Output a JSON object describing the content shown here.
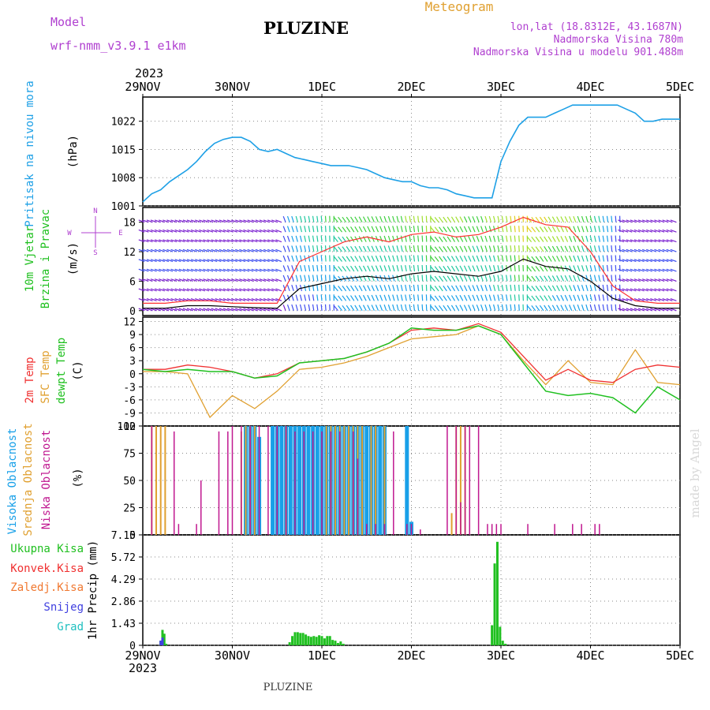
{
  "header": {
    "title": "PLUZINE",
    "model_label": "Model",
    "model_name": "wrf-nmm_v3.9.1 e1km",
    "meteogram_label": "Meteogram",
    "lonlat": "lon,lat (18.8312E, 43.1687N)",
    "elevation": "Nadmorska Visina 780m",
    "model_elevation": "Nadmorska Visina u modelu 901.488m",
    "watermark": "made by Angel",
    "footer": "PLUZINE"
  },
  "time_axis": {
    "year_top": "2023",
    "year_bottom": "2023",
    "labels": [
      "29NOV",
      "30NOV",
      "1DEC",
      "2DEC",
      "3DEC",
      "4DEC",
      "5DEC"
    ]
  },
  "colors": {
    "pressure": "#1ea0e6",
    "wind_speed": "#000000",
    "gust": "#ff3030",
    "t2m": "#f03030",
    "sfc": "#e0a030",
    "dew": "#20c020",
    "high_cloud": "#18a0e8",
    "mid_cloud": "#e0a030",
    "low_cloud": "#c01890",
    "total_precip": "#20c020",
    "conv_precip": "#f03030",
    "frz_precip": "#f07830",
    "snow": "#4040e0",
    "hail": "#20c0c0",
    "title_purple": "#b040d0",
    "orange_label": "#e0a030"
  },
  "chart_data": [
    {
      "type": "line",
      "ylabel_1": "Pritisak na nivou mora",
      "ylabel_2": "(hPa)",
      "yticks": [
        "1001",
        "1008",
        "1015",
        "1022"
      ],
      "ylim": [
        1001,
        1028
      ],
      "x_days": [
        0,
        0.1,
        0.2,
        0.3,
        0.4,
        0.5,
        0.6,
        0.7,
        0.8,
        0.9,
        1.0,
        1.1,
        1.2,
        1.3,
        1.4,
        1.5,
        1.6,
        1.7,
        1.8,
        1.9,
        2.0,
        2.1,
        2.2,
        2.3,
        2.4,
        2.5,
        2.6,
        2.7,
        2.8,
        2.9,
        3.0,
        3.1,
        3.2,
        3.3,
        3.4,
        3.5,
        3.6,
        3.7,
        3.8,
        3.9,
        4.0,
        4.1,
        4.2,
        4.3,
        4.4,
        4.5,
        4.6,
        4.7,
        4.8,
        4.9,
        5.0,
        5.1,
        5.2,
        5.3,
        5.4,
        5.5,
        5.6,
        5.7,
        5.8,
        5.9,
        6.0
      ],
      "series": [
        {
          "name": "",
          "values": [
            1002,
            1004,
            1005,
            1007,
            1008.5,
            1010,
            1012,
            1014.5,
            1016.5,
            1017.5,
            1018,
            1018,
            1017,
            1015,
            1014.5,
            1015,
            1014,
            1013,
            1012.5,
            1012,
            1011.5,
            1011,
            1011,
            1011,
            1010.5,
            1010,
            1009,
            1008,
            1007.5,
            1007,
            1007,
            1006,
            1005.5,
            1005.5,
            1005,
            1004,
            1003.5,
            1003,
            1003,
            1003,
            1012,
            1017,
            1021,
            1023,
            1023,
            1023,
            1024,
            1025,
            1026,
            1026,
            1026,
            1026,
            1026,
            1026,
            1025,
            1024,
            1022,
            1022,
            1022.5,
            1022.5,
            1022.5
          ]
        }
      ]
    },
    {
      "type": "line",
      "ylabel_1": "10m Vjetar",
      "ylabel_2": "Brzina i Pravac",
      "ylabel_3": "(m/s)",
      "compass": [
        "N",
        "E",
        "S",
        "W"
      ],
      "yticks": [
        "0",
        "6",
        "12",
        "18"
      ],
      "ylim": [
        -1,
        21
      ],
      "x_days": [
        0,
        0.25,
        0.5,
        0.75,
        1.0,
        1.25,
        1.5,
        1.75,
        2.0,
        2.25,
        2.5,
        2.75,
        3.0,
        3.25,
        3.5,
        3.75,
        4.0,
        4.25,
        4.5,
        4.75,
        5.0,
        5.25,
        5.5,
        5.75,
        6.0
      ],
      "series": [
        {
          "name": "",
          "values": [
            0.5,
            0.5,
            1.0,
            1.0,
            0.8,
            0.6,
            0.5,
            4.5,
            5.5,
            6.5,
            7.0,
            6.5,
            7.5,
            8.0,
            7.5,
            7.0,
            8.0,
            10.5,
            9.0,
            8.5,
            6.0,
            2.5,
            1.0,
            0.5,
            0.5
          ]
        },
        {
          "name": "",
          "values": [
            1.5,
            1.5,
            2.0,
            2.0,
            1.5,
            1.5,
            1.5,
            10.0,
            12.0,
            14.0,
            15.0,
            14.0,
            15.5,
            16.0,
            15.0,
            15.5,
            17.0,
            19.0,
            17.5,
            17.0,
            12.0,
            5.0,
            2.0,
            1.5,
            1.5
          ]
        }
      ]
    },
    {
      "type": "line",
      "ylabel_1": "2m Temp",
      "ylabel_2": "SFC Temp",
      "ylabel_3": "dewpt Temp",
      "ylabel_4": "(C)",
      "yticks": [
        "-12",
        "-9",
        "-6",
        "-3",
        "0",
        "3",
        "6",
        "9",
        "12"
      ],
      "ylim": [
        -12,
        13
      ],
      "x_days": [
        0,
        0.25,
        0.5,
        0.75,
        1.0,
        1.25,
        1.5,
        1.75,
        2.0,
        2.25,
        2.5,
        2.75,
        3.0,
        3.25,
        3.5,
        3.75,
        4.0,
        4.25,
        4.5,
        4.75,
        5.0,
        5.25,
        5.5,
        5.75,
        6.0
      ],
      "series": [
        {
          "name": "",
          "values": [
            1.0,
            1.0,
            2.0,
            1.5,
            0.5,
            -1.0,
            0.0,
            2.5,
            3.0,
            3.5,
            5.0,
            7.0,
            10.0,
            10.5,
            10.0,
            11.5,
            9.5,
            4.0,
            -1.5,
            1.0,
            -1.5,
            -2.0,
            1.0,
            2.0,
            1.5
          ]
        },
        {
          "name": "",
          "values": [
            0.5,
            0.5,
            0.0,
            -10.0,
            -5.0,
            -8.0,
            -4.0,
            1.0,
            1.5,
            2.5,
            4.0,
            6.0,
            8.0,
            8.5,
            9.0,
            11.0,
            9.0,
            3.0,
            -2.5,
            3.0,
            -2.0,
            -2.5,
            5.5,
            -2.0,
            -2.5
          ]
        },
        {
          "name": "",
          "values": [
            1.0,
            0.5,
            1.0,
            0.5,
            0.5,
            -1.0,
            -0.5,
            2.5,
            3.0,
            3.5,
            5.0,
            7.0,
            10.5,
            10.0,
            10.0,
            11.0,
            9.0,
            2.5,
            -4.0,
            -5.0,
            -4.5,
            -5.5,
            -9.0,
            -3.0,
            -6.0
          ]
        }
      ]
    },
    {
      "type": "bar",
      "ylabel_1": "Visoka Oblacnost",
      "ylabel_2": "Srednja Oblacnost",
      "ylabel_3": "Niska Oblacnost",
      "ylabel_4": "(%)",
      "yticks": [
        "0",
        "25",
        "50",
        "75",
        "100"
      ],
      "ylim": [
        0,
        100
      ],
      "series": [
        {
          "name": "",
          "x_days": [
            1.15,
            1.2,
            1.25,
            1.3,
            1.45,
            1.5,
            1.55,
            1.6,
            1.65,
            1.7,
            1.75,
            1.8,
            1.85,
            1.9,
            1.95,
            2.0,
            2.05,
            2.1,
            2.15,
            2.2,
            2.25,
            2.3,
            2.35,
            2.4,
            2.45,
            2.5,
            2.55,
            2.6,
            2.65,
            2.7,
            2.95,
            3.0
          ],
          "values": [
            100,
            100,
            100,
            90,
            100,
            100,
            100,
            100,
            100,
            100,
            100,
            100,
            100,
            100,
            100,
            100,
            100,
            100,
            100,
            100,
            100,
            100,
            100,
            100,
            100,
            100,
            100,
            100,
            100,
            100,
            100,
            12
          ]
        },
        {
          "name": "",
          "x_days": [
            0.1,
            0.15,
            0.2,
            0.25,
            1.1,
            1.15,
            1.2,
            1.25,
            1.6,
            2.05,
            2.1,
            2.15,
            2.2,
            2.25,
            2.3,
            2.35,
            2.4,
            2.45,
            2.55,
            2.6,
            2.7,
            3.45,
            3.5,
            3.55,
            3.6
          ],
          "values": [
            100,
            100,
            100,
            100,
            95,
            100,
            100,
            100,
            100,
            100,
            100,
            100,
            100,
            100,
            100,
            100,
            100,
            100,
            100,
            100,
            100,
            20,
            100,
            100,
            100
          ]
        },
        {
          "name": "",
          "x_days": [
            0.1,
            0.35,
            0.4,
            0.6,
            0.65,
            0.85,
            0.95,
            1.0,
            1.1,
            1.2,
            1.3,
            1.4,
            1.5,
            1.6,
            1.7,
            1.8,
            1.9,
            2.0,
            2.1,
            2.2,
            2.35,
            2.4,
            2.5,
            2.6,
            2.7,
            2.8,
            2.95,
            3.0,
            3.1,
            3.4,
            3.5,
            3.55,
            3.6,
            3.65,
            3.75,
            3.85,
            3.9,
            3.95,
            4.0,
            4.3,
            4.6,
            4.8,
            4.9,
            5.05,
            5.1
          ],
          "values": [
            100,
            95,
            10,
            10,
            50,
            95,
            95,
            100,
            100,
            100,
            100,
            100,
            100,
            100,
            95,
            95,
            95,
            95,
            95,
            95,
            95,
            70,
            10,
            10,
            10,
            95,
            10,
            10,
            5,
            100,
            100,
            30,
            100,
            100,
            100,
            10,
            10,
            10,
            10,
            10,
            10,
            10,
            10,
            10,
            10
          ]
        }
      ]
    },
    {
      "type": "bar",
      "ylabel_1": "1hr Precip",
      "ylabel_2": "(mm)",
      "legend": [
        "Ukupna Kisa",
        "Konvek.Kisa",
        "Zaledj.Kisa",
        "Snijeg",
        "Grad"
      ],
      "yticks": [
        "0",
        "1.43",
        "2.86",
        "4.29",
        "5.72",
        "7.15"
      ],
      "ylim": [
        0,
        7.15
      ],
      "series": [
        {
          "name": "Ukupna Kisa",
          "x_days": [
            0.2,
            0.22,
            0.24,
            0.26,
            1.64,
            1.67,
            1.7,
            1.73,
            1.76,
            1.79,
            1.82,
            1.85,
            1.88,
            1.91,
            1.94,
            1.97,
            2.0,
            2.03,
            2.06,
            2.09,
            2.12,
            2.15,
            2.18,
            2.21,
            2.24,
            3.9,
            3.93,
            3.96,
            3.99,
            4.02,
            4.05
          ],
          "values": [
            0.3,
            1.0,
            0.75,
            0.1,
            0.2,
            0.6,
            0.85,
            0.85,
            0.8,
            0.8,
            0.7,
            0.6,
            0.55,
            0.6,
            0.55,
            0.65,
            0.6,
            0.45,
            0.6,
            0.6,
            0.35,
            0.3,
            0.15,
            0.25,
            0.1,
            1.3,
            5.3,
            6.7,
            1.2,
            0.3,
            0.1
          ]
        },
        {
          "name": "Snijeg",
          "x_days": [
            0.2,
            0.22
          ],
          "values": [
            0.3,
            0.5
          ]
        }
      ]
    }
  ]
}
